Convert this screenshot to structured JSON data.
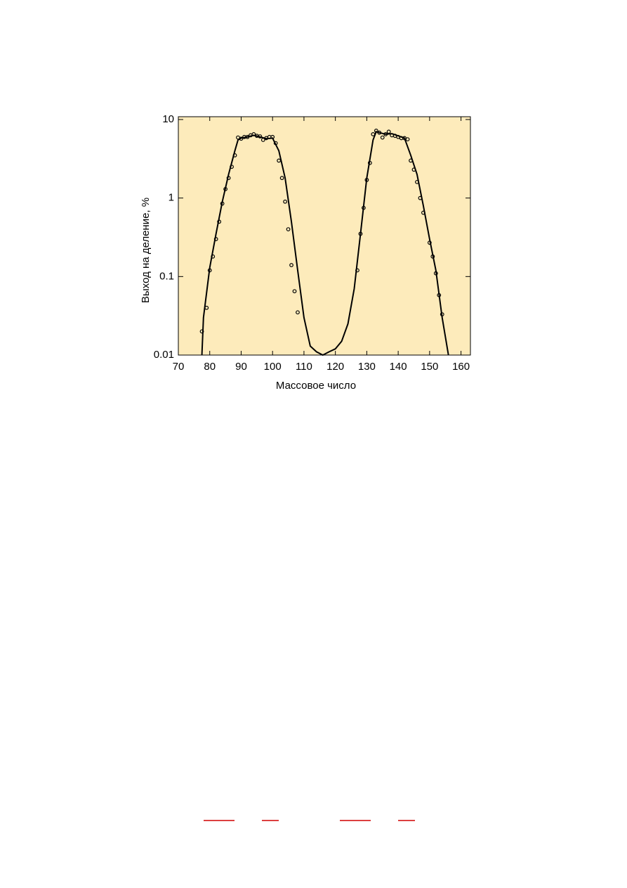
{
  "chart_data": {
    "type": "line",
    "x_label": "Массовое число",
    "y_label": "Выход на деление, %",
    "xlim": [
      70,
      163
    ],
    "xticks": [
      70,
      80,
      90,
      100,
      110,
      120,
      130,
      140,
      150,
      160
    ],
    "ylim": [
      0.01,
      10
    ],
    "yticks": [
      0.01,
      0.1,
      1,
      10
    ],
    "log_y": true,
    "background": "#fdebbb",
    "series": [
      {
        "type": "line",
        "color": "#000000",
        "x": [
          77.5,
          78,
          80,
          82,
          84,
          86,
          88,
          89,
          90,
          92,
          94,
          96,
          98,
          100,
          102,
          104,
          106,
          108,
          110,
          112,
          114,
          116,
          118,
          120,
          122,
          124,
          126,
          128,
          130,
          132,
          133,
          134,
          136,
          138,
          140,
          142,
          144,
          146,
          148,
          150,
          152,
          154,
          156
        ],
        "values": [
          0.01,
          0.03,
          0.13,
          0.35,
          0.9,
          2.0,
          4.0,
          5.5,
          5.8,
          6.0,
          6.3,
          6.0,
          5.7,
          5.8,
          4.0,
          1.8,
          0.5,
          0.12,
          0.03,
          0.013,
          0.011,
          0.01,
          0.011,
          0.012,
          0.015,
          0.025,
          0.07,
          0.35,
          1.8,
          5.5,
          7.0,
          6.8,
          6.5,
          6.6,
          6.2,
          5.8,
          3.5,
          2.0,
          0.8,
          0.3,
          0.12,
          0.03,
          0.01
        ]
      },
      {
        "type": "scatter",
        "color": "#000000",
        "x": [
          77.5,
          79,
          80,
          81,
          82,
          83,
          84,
          85,
          86,
          87,
          88,
          89,
          90,
          91,
          92,
          93,
          94,
          95,
          96,
          97,
          98,
          99,
          100,
          101,
          102,
          103,
          104,
          105,
          106,
          107,
          108,
          127,
          128,
          129,
          130,
          131,
          132,
          133,
          134,
          135,
          136,
          137,
          138,
          139,
          140,
          141,
          142,
          143,
          144,
          145,
          146,
          147,
          148,
          150,
          151,
          152,
          153,
          154
        ],
        "values": [
          0.02,
          0.04,
          0.12,
          0.18,
          0.3,
          0.5,
          0.85,
          1.3,
          1.8,
          2.5,
          3.5,
          5.9,
          5.7,
          6.0,
          6.0,
          6.3,
          6.5,
          6.2,
          6.1,
          5.5,
          5.8,
          6.0,
          6.0,
          5.0,
          3.0,
          1.8,
          0.9,
          0.4,
          0.14,
          0.065,
          0.035,
          0.12,
          0.35,
          0.75,
          1.7,
          2.8,
          6.5,
          7.2,
          6.8,
          5.9,
          6.5,
          7.0,
          6.3,
          6.2,
          6.0,
          5.8,
          5.8,
          5.6,
          3.0,
          2.3,
          1.6,
          1.0,
          0.65,
          0.27,
          0.18,
          0.11,
          0.058,
          0.033
        ]
      }
    ]
  }
}
